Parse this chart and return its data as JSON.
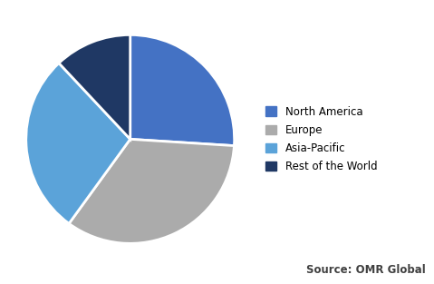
{
  "labels": [
    "North America",
    "Europe",
    "Asia-Pacific",
    "Rest of the World"
  ],
  "sizes": [
    26,
    34,
    28,
    12
  ],
  "colors": [
    "#4472C4",
    "#ABABAB",
    "#5BA3D9",
    "#1F3864"
  ],
  "startangle": 90,
  "counterclock": false,
  "source_text": "Source: OMR Global",
  "background_color": "#FFFFFF",
  "wedge_edge_color": "#FFFFFF",
  "wedge_linewidth": 2.0,
  "legend_fontsize": 8.5,
  "source_fontsize": 8.5,
  "source_color": "#404040"
}
